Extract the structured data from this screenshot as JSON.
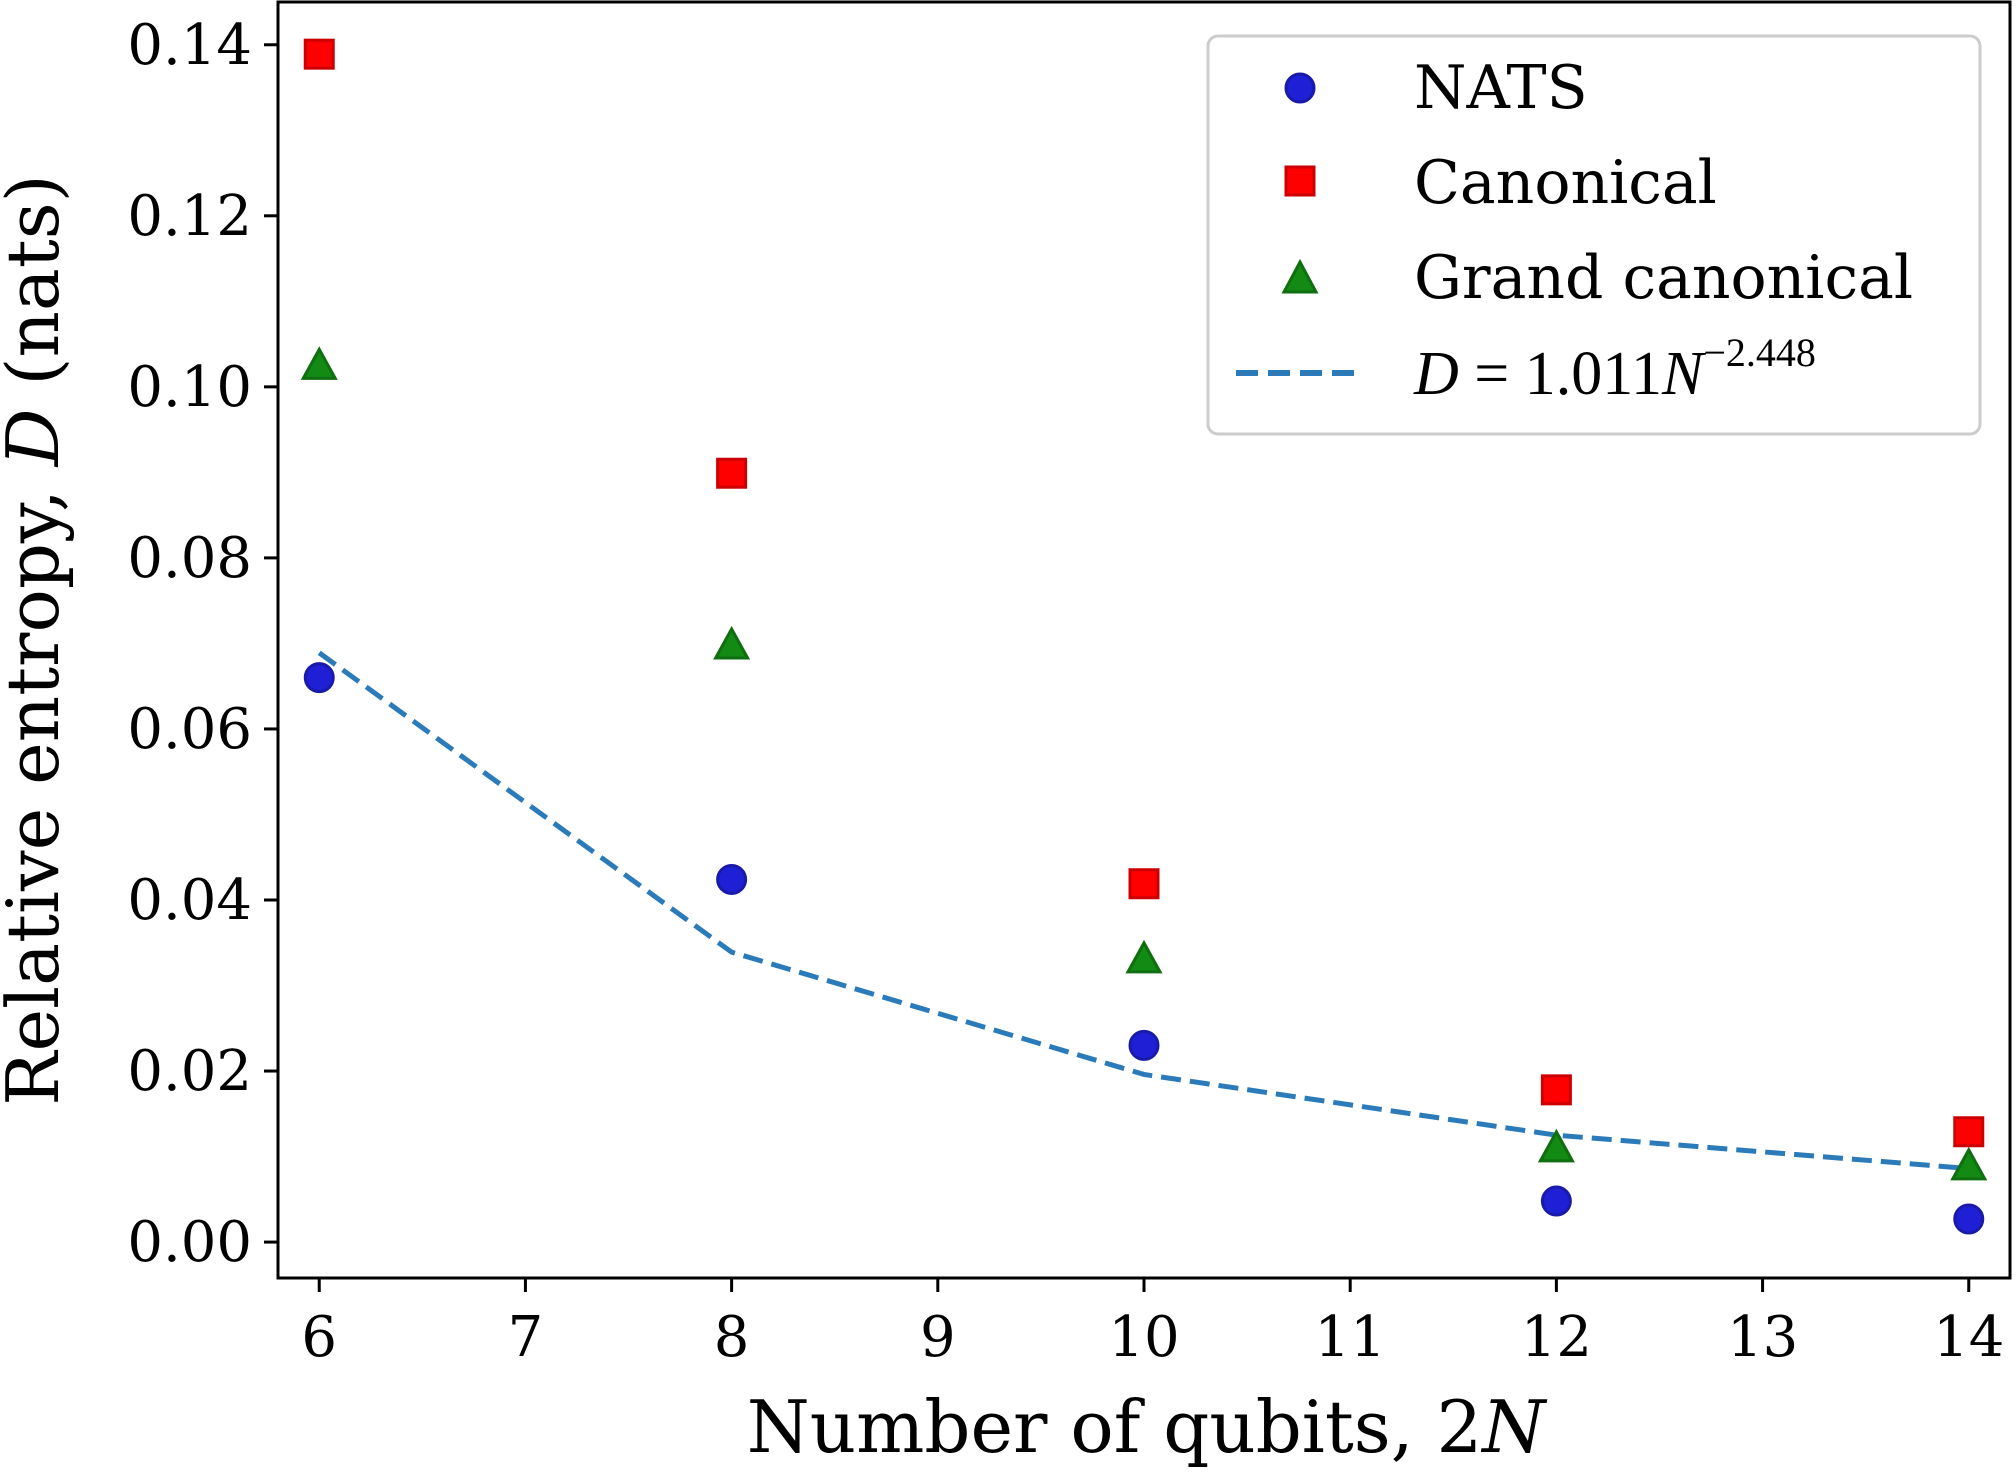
{
  "chart_data": {
    "type": "scatter",
    "xlabel": {
      "text": "Number of qubits, ",
      "math": "2",
      "math_italic": "N"
    },
    "ylabel": {
      "text": "Relative entropy, ",
      "math_italic": "D",
      "suffix": " (nats)"
    },
    "xlim": [
      5.8,
      14.2
    ],
    "ylim": [
      -0.0042,
      0.145
    ],
    "xticks": [
      6,
      7,
      8,
      9,
      10,
      11,
      12,
      13,
      14
    ],
    "xtick_labels": [
      "6",
      "7",
      "8",
      "9",
      "10",
      "11",
      "12",
      "13",
      "14"
    ],
    "yticks": [
      0.0,
      0.02,
      0.04,
      0.06,
      0.08,
      0.1,
      0.12,
      0.14
    ],
    "ytick_labels": [
      "0.00",
      "0.02",
      "0.04",
      "0.06",
      "0.08",
      "0.10",
      "0.12",
      "0.14"
    ],
    "grid": false,
    "legend_position": "top-right",
    "x": [
      6,
      8,
      10,
      12,
      14
    ],
    "series": [
      {
        "name": "NATS",
        "marker": "circle",
        "color": "#1f1fd6",
        "values": [
          0.066,
          0.0424,
          0.023,
          0.0048,
          0.0027
        ]
      },
      {
        "name": "Canonical",
        "marker": "square",
        "color": "#ff0000",
        "values": [
          0.1389,
          0.0899,
          0.0419,
          0.0178,
          0.0129
        ]
      },
      {
        "name": "Grand canonical",
        "marker": "triangle",
        "color": "#138a13",
        "values": [
          0.1024,
          0.0697,
          0.033,
          0.0109,
          0.0088
        ]
      },
      {
        "name": "fit",
        "label_math": {
          "lhs": "D",
          "eq": " = 1.011",
          "var": "N",
          "exp": "−2.448"
        },
        "marker": "dashed-line",
        "color": "#2b7bba",
        "values": [
          0.0689,
          0.0339,
          0.0196,
          0.0125,
          0.0086
        ]
      }
    ]
  }
}
